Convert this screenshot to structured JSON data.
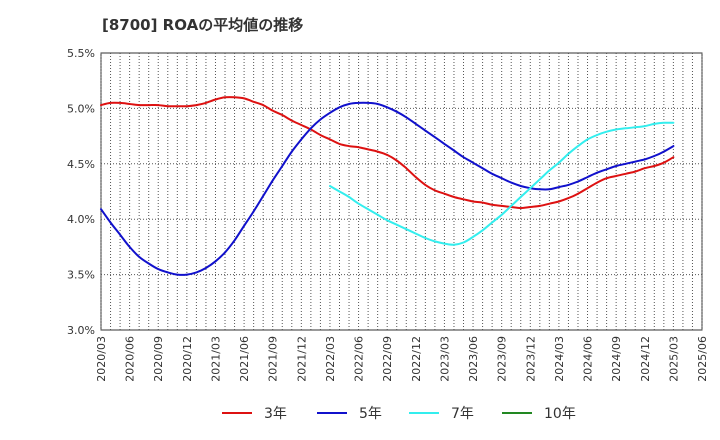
{
  "chart_data": {
    "type": "line",
    "title": "[8700]  ROAの平均値の推移",
    "xlabel": "",
    "ylabel": "",
    "ylim": [
      3.0,
      5.5
    ],
    "yticks": [
      "3.0%",
      "3.5%",
      "4.0%",
      "4.5%",
      "5.0%",
      "5.5%"
    ],
    "xticks": [
      "2020/03",
      "2020/06",
      "2020/09",
      "2020/12",
      "2021/03",
      "2021/06",
      "2021/09",
      "2021/12",
      "2022/03",
      "2022/06",
      "2022/09",
      "2022/12",
      "2023/03",
      "2023/06",
      "2023/09",
      "2023/12",
      "2024/03",
      "2024/06",
      "2024/09",
      "2024/12",
      "2025/03",
      "2025/06"
    ],
    "grid": true,
    "legend_position": "bottom",
    "series": [
      {
        "name": "3年",
        "color": "#dd1111",
        "x": [
          "2020/03",
          "2020/04",
          "2020/05",
          "2020/06",
          "2020/07",
          "2020/08",
          "2020/09",
          "2020/10",
          "2020/11",
          "2020/12",
          "2021/01",
          "2021/02",
          "2021/03",
          "2021/04",
          "2021/05",
          "2021/06",
          "2021/07",
          "2021/08",
          "2021/09",
          "2021/10",
          "2021/11",
          "2021/12",
          "2022/01",
          "2022/02",
          "2022/03",
          "2022/04",
          "2022/05",
          "2022/06",
          "2022/07",
          "2022/08",
          "2022/09",
          "2022/10",
          "2022/11",
          "2022/12",
          "2023/01",
          "2023/02",
          "2023/03",
          "2023/04",
          "2023/05",
          "2023/06",
          "2023/07",
          "2023/08",
          "2023/09",
          "2023/10",
          "2023/11",
          "2023/12",
          "2024/01",
          "2024/02",
          "2024/03",
          "2024/04",
          "2024/05",
          "2024/06",
          "2024/07",
          "2024/08",
          "2024/09",
          "2024/10",
          "2024/11",
          "2024/12",
          "2025/01",
          "2025/02",
          "2025/03"
        ],
        "values": [
          5.03,
          5.05,
          5.05,
          5.04,
          5.03,
          5.03,
          5.03,
          5.02,
          5.02,
          5.02,
          5.03,
          5.05,
          5.08,
          5.1,
          5.1,
          5.09,
          5.06,
          5.03,
          4.98,
          4.94,
          4.89,
          4.85,
          4.81,
          4.76,
          4.72,
          4.68,
          4.66,
          4.65,
          4.63,
          4.61,
          4.58,
          4.53,
          4.46,
          4.38,
          4.31,
          4.26,
          4.23,
          4.2,
          4.18,
          4.16,
          4.15,
          4.13,
          4.12,
          4.11,
          4.1,
          4.11,
          4.12,
          4.14,
          4.16,
          4.19,
          4.23,
          4.28,
          4.33,
          4.37,
          4.39,
          4.41,
          4.43,
          4.46,
          4.48,
          4.51,
          4.56
        ]
      },
      {
        "name": "5年",
        "color": "#1111cc",
        "x": [
          "2020/03",
          "2020/04",
          "2020/05",
          "2020/06",
          "2020/07",
          "2020/08",
          "2020/09",
          "2020/10",
          "2020/11",
          "2020/12",
          "2021/01",
          "2021/02",
          "2021/03",
          "2021/04",
          "2021/05",
          "2021/06",
          "2021/07",
          "2021/08",
          "2021/09",
          "2021/10",
          "2021/11",
          "2021/12",
          "2022/01",
          "2022/02",
          "2022/03",
          "2022/04",
          "2022/05",
          "2022/06",
          "2022/07",
          "2022/08",
          "2022/09",
          "2022/10",
          "2022/11",
          "2022/12",
          "2023/01",
          "2023/02",
          "2023/03",
          "2023/04",
          "2023/05",
          "2023/06",
          "2023/07",
          "2023/08",
          "2023/09",
          "2023/10",
          "2023/11",
          "2023/12",
          "2024/01",
          "2024/02",
          "2024/03",
          "2024/04",
          "2024/05",
          "2024/06",
          "2024/07",
          "2024/08",
          "2024/09",
          "2024/10",
          "2024/11",
          "2024/12",
          "2025/01",
          "2025/02",
          "2025/03"
        ],
        "values": [
          4.09,
          3.97,
          3.86,
          3.75,
          3.66,
          3.6,
          3.55,
          3.52,
          3.5,
          3.5,
          3.52,
          3.56,
          3.62,
          3.7,
          3.81,
          3.94,
          4.07,
          4.21,
          4.35,
          4.48,
          4.61,
          4.72,
          4.82,
          4.9,
          4.96,
          5.01,
          5.04,
          5.05,
          5.05,
          5.04,
          5.01,
          4.97,
          4.92,
          4.86,
          4.8,
          4.74,
          4.68,
          4.62,
          4.56,
          4.51,
          4.46,
          4.41,
          4.37,
          4.33,
          4.3,
          4.28,
          4.27,
          4.27,
          4.29,
          4.31,
          4.34,
          4.38,
          4.42,
          4.45,
          4.48,
          4.5,
          4.52,
          4.54,
          4.57,
          4.61,
          4.66
        ]
      },
      {
        "name": "7年",
        "color": "#33eeee",
        "x": [
          "2022/03",
          "2022/04",
          "2022/05",
          "2022/06",
          "2022/07",
          "2022/08",
          "2022/09",
          "2022/10",
          "2022/11",
          "2022/12",
          "2023/01",
          "2023/02",
          "2023/03",
          "2023/04",
          "2023/05",
          "2023/06",
          "2023/07",
          "2023/08",
          "2023/09",
          "2023/10",
          "2023/11",
          "2023/12",
          "2024/01",
          "2024/02",
          "2024/03",
          "2024/04",
          "2024/05",
          "2024/06",
          "2024/07",
          "2024/08",
          "2024/09",
          "2024/10",
          "2024/11",
          "2024/12",
          "2025/01",
          "2025/02",
          "2025/03"
        ],
        "values": [
          4.3,
          4.25,
          4.2,
          4.14,
          4.09,
          4.04,
          3.99,
          3.95,
          3.91,
          3.87,
          3.83,
          3.8,
          3.78,
          3.77,
          3.79,
          3.84,
          3.9,
          3.97,
          4.04,
          4.12,
          4.2,
          4.28,
          4.36,
          4.44,
          4.51,
          4.59,
          4.66,
          4.72,
          4.76,
          4.79,
          4.81,
          4.82,
          4.83,
          4.84,
          4.86,
          4.87,
          4.87
        ]
      },
      {
        "name": "10年",
        "color": "#228822",
        "x": [],
        "values": []
      }
    ]
  }
}
